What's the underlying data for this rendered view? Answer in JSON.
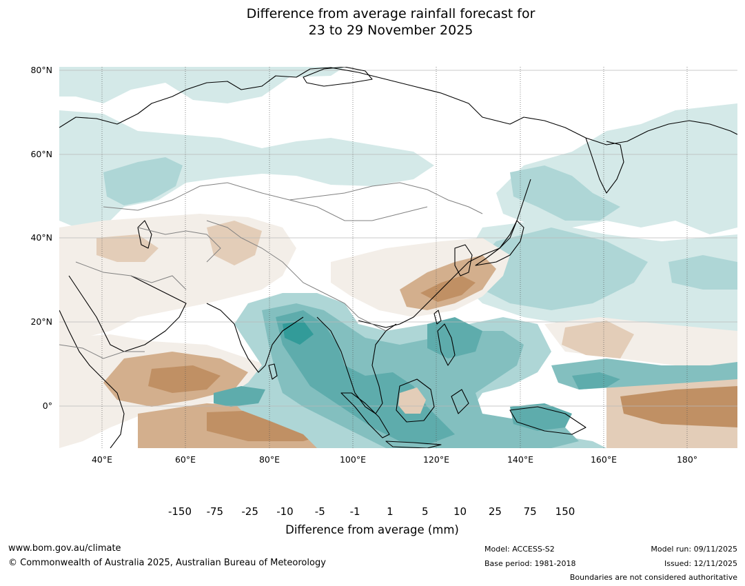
{
  "title_line1": "Difference from average rainfall forecast for",
  "title_line2": "23 to 29 November 2025",
  "map": {
    "lat_labels": [
      "80°N",
      "60°N",
      "40°N",
      "20°N",
      "0°"
    ],
    "lon_labels": [
      "40°E",
      "60°E",
      "80°E",
      "100°E",
      "120°E",
      "140°E",
      "160°E",
      "180°"
    ],
    "colors": {
      "land_outline": "#000000",
      "boundary": "#808080",
      "grid": "#b0b0b0"
    }
  },
  "colorbar": {
    "title": "Difference from average (mm)",
    "labels": [
      "-150",
      "-75",
      "-25",
      "-10",
      "-5",
      "-1",
      "1",
      "5",
      "10",
      "25",
      "75",
      "150"
    ],
    "colors": [
      "#9e6a35",
      "#ad773f",
      "#c09064",
      "#d3af8d",
      "#e3cdb8",
      "#f3eee8",
      "#ffffff",
      "#d4e9e8",
      "#aed6d6",
      "#83bfbf",
      "#5eacac",
      "#329b99",
      "#206e6c"
    ]
  },
  "footer": {
    "website": "www.bom.gov.au/climate",
    "copyright": "© Commonwealth of Australia 2025, Australian Bureau of Meteorology",
    "model": "Model: ACCESS-S2",
    "base_period": "Base period: 1981-2018",
    "model_run": "Model run: 09/11/2025",
    "issued": "Issued: 12/11/2025",
    "disclaimer": "Boundaries are not considered authoritative"
  }
}
